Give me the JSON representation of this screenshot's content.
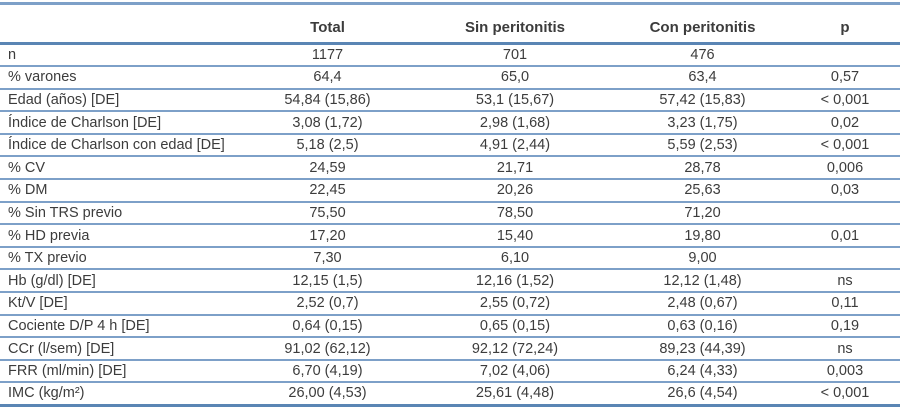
{
  "colors": {
    "rule": "#7da0c8",
    "rule_dark": "#5a85b4",
    "text": "#3c3c3c",
    "background": "#ffffff"
  },
  "table": {
    "headers": [
      "",
      "Total",
      "Sin peritonitis",
      "Con peritonitis",
      "p"
    ],
    "rows": [
      {
        "label": "n",
        "total": "1177",
        "sin": "701",
        "con": "476",
        "p": ""
      },
      {
        "label": "% varones",
        "total": "64,4",
        "sin": "65,0",
        "con": "63,4",
        "p": "0,57"
      },
      {
        "label": "Edad (años) [DE]",
        "total": "54,84 (15,86)",
        "sin": "53,1 (15,67)",
        "con": "57,42 (15,83)",
        "p": "< 0,001"
      },
      {
        "label": "Índice de Charlson [DE]",
        "total": "3,08 (1,72)",
        "sin": "2,98 (1,68)",
        "con": "3,23 (1,75)",
        "p": "0,02"
      },
      {
        "label": "Índice de Charlson con edad [DE]",
        "total": "5,18 (2,5)",
        "sin": "4,91 (2,44)",
        "con": "5,59 (2,53)",
        "p": "< 0,001"
      },
      {
        "label": "% CV",
        "total": "24,59",
        "sin": "21,71",
        "con": "28,78",
        "p": "0,006"
      },
      {
        "label": "% DM",
        "total": "22,45",
        "sin": "20,26",
        "con": "25,63",
        "p": "0,03"
      },
      {
        "label": "% Sin TRS previo",
        "total": "75,50",
        "sin": "78,50",
        "con": "71,20",
        "p": ""
      },
      {
        "label": "% HD previa",
        "total": "17,20",
        "sin": "15,40",
        "con": "19,80",
        "p": "0,01"
      },
      {
        "label": "% TX previo",
        "total": "7,30",
        "sin": "6,10",
        "con": "9,00",
        "p": ""
      },
      {
        "label": "Hb (g/dl) [DE]",
        "total": "12,15 (1,5)",
        "sin": "12,16 (1,52)",
        "con": "12,12 (1,48)",
        "p": "ns"
      },
      {
        "label": "Kt/V [DE]",
        "total": "2,52 (0,7)",
        "sin": "2,55 (0,72)",
        "con": "2,48 (0,67)",
        "p": "0,11"
      },
      {
        "label": "Cociente D/P 4 h [DE]",
        "total": "0,64 (0,15)",
        "sin": "0,65 (0,15)",
        "con": "0,63 (0,16)",
        "p": "0,19"
      },
      {
        "label": "CCr (l/sem) [DE]",
        "total": "91,02 (62,12)",
        "sin": "92,12 (72,24)",
        "con": "89,23 (44,39)",
        "p": "ns"
      },
      {
        "label": "FRR (ml/min) [DE]",
        "total": "6,70 (4,19)",
        "sin": "7,02 (4,06)",
        "con": "6,24 (4,33)",
        "p": "0,003"
      },
      {
        "label": "IMC (kg/m²)",
        "total": "26,00 (4,53)",
        "sin": "25,61 (4,48)",
        "con": "26,6 (4,54)",
        "p": "< 0,001"
      }
    ]
  }
}
